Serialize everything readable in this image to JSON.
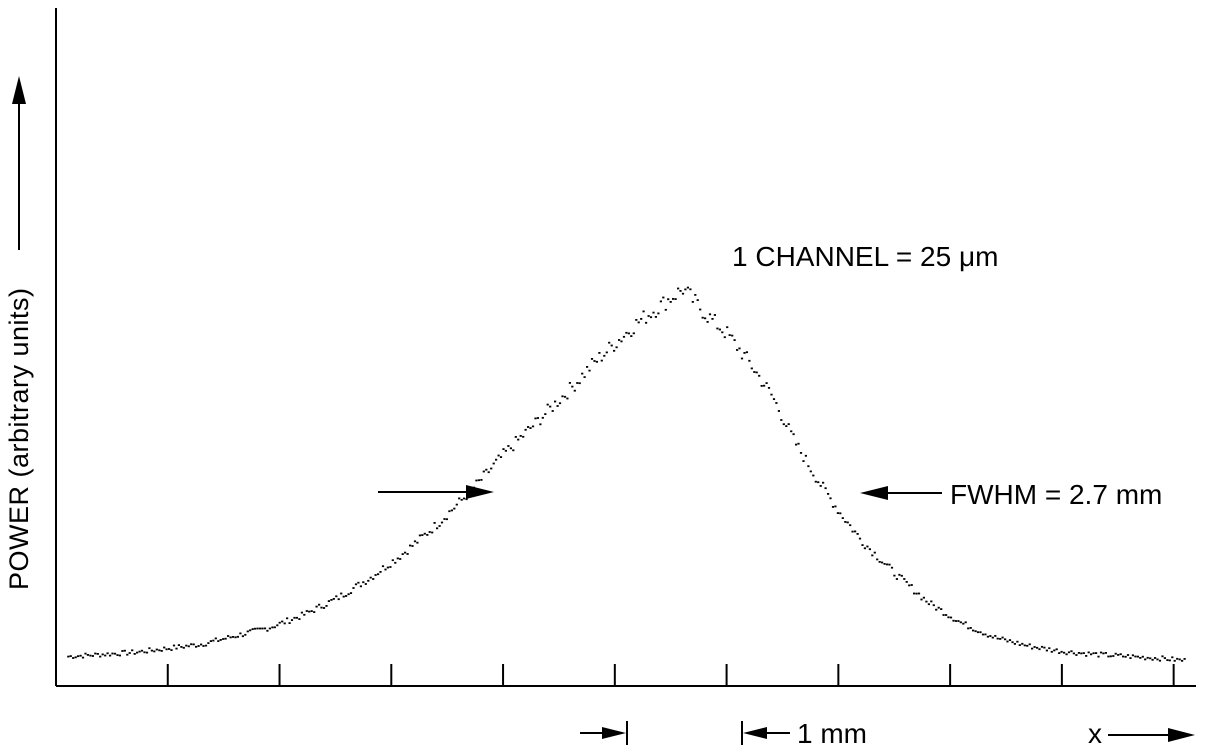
{
  "chart_data": {
    "type": "scatter",
    "title": "",
    "xlabel": "x",
    "ylabel": "POWER (arbitrary units)",
    "x_unit": "mm",
    "xlim": [
      -5.6,
      4.6
    ],
    "ylim": [
      0,
      1.0
    ],
    "x_ticks": [
      -4.6,
      -3.6,
      -2.6,
      -1.6,
      -0.6,
      0.4,
      1.4,
      2.4,
      3.4,
      4.4
    ],
    "grid": false,
    "legend": "none",
    "annotations": {
      "channel": "1 CHANNEL = 25 μm",
      "fwhm": "FWHM = 2.7 mm",
      "scale": "1 mm"
    },
    "series": [
      {
        "x": [
          -5.5,
          -5.2,
          -4.9,
          -4.6,
          -4.3,
          -4.0,
          -3.7,
          -3.4,
          -3.1,
          -2.8,
          -2.5,
          -2.2,
          -1.9,
          -1.6,
          -1.3,
          -1.0,
          -0.8,
          -0.6,
          -0.4,
          -0.3,
          -0.2,
          -0.1,
          0.0,
          0.1,
          0.2,
          0.4,
          0.6,
          0.8,
          1.0,
          1.2,
          1.4,
          1.6,
          1.9,
          2.2,
          2.5,
          2.8,
          3.1,
          3.4,
          3.7,
          4.0,
          4.3,
          4.5
        ],
        "y": [
          0.03,
          0.035,
          0.04,
          0.05,
          0.06,
          0.08,
          0.1,
          0.13,
          0.17,
          0.22,
          0.28,
          0.35,
          0.43,
          0.52,
          0.6,
          0.68,
          0.74,
          0.79,
          0.84,
          0.86,
          0.88,
          0.9,
          0.92,
          0.89,
          0.86,
          0.81,
          0.74,
          0.66,
          0.55,
          0.46,
          0.38,
          0.31,
          0.23,
          0.16,
          0.11,
          0.075,
          0.055,
          0.042,
          0.035,
          0.03,
          0.025,
          0.02
        ]
      }
    ]
  }
}
